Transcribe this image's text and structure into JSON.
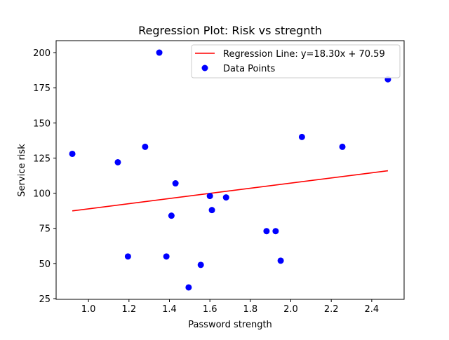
{
  "chart_data": {
    "type": "scatter",
    "title": "Regression Plot: Risk vs stregnth",
    "xlabel": "Password strength",
    "ylabel": "Service risk",
    "xlim": [
      0.84,
      2.56
    ],
    "ylim": [
      24.5,
      208.5
    ],
    "xticks": [
      "1.0",
      "1.2",
      "1.4",
      "1.6",
      "1.8",
      "2.0",
      "2.2",
      "2.4"
    ],
    "xtick_values": [
      1.0,
      1.2,
      1.4,
      1.6,
      1.8,
      2.0,
      2.2,
      2.4
    ],
    "yticks": [
      "25",
      "50",
      "75",
      "100",
      "125",
      "150",
      "175",
      "200"
    ],
    "ytick_values": [
      25,
      50,
      75,
      100,
      125,
      150,
      175,
      200
    ],
    "grid": false,
    "legend_position": "top-right",
    "legend": [
      "Regression Line: y=18.30x + 70.59",
      "Data Points"
    ],
    "regression": {
      "label": "Regression Line: y=18.30x + 70.59",
      "slope": 18.3,
      "intercept": 70.59,
      "x_range": [
        0.92,
        2.48
      ],
      "color": "#ff0000"
    },
    "series": [
      {
        "name": "Data Points",
        "color": "#0000ff",
        "points": [
          {
            "x": 0.92,
            "y": 128
          },
          {
            "x": 1.145,
            "y": 122
          },
          {
            "x": 1.195,
            "y": 55
          },
          {
            "x": 1.28,
            "y": 133
          },
          {
            "x": 1.35,
            "y": 200
          },
          {
            "x": 1.385,
            "y": 55
          },
          {
            "x": 1.41,
            "y": 84
          },
          {
            "x": 1.43,
            "y": 107
          },
          {
            "x": 1.495,
            "y": 33
          },
          {
            "x": 1.555,
            "y": 49
          },
          {
            "x": 1.6,
            "y": 98
          },
          {
            "x": 1.61,
            "y": 88
          },
          {
            "x": 1.68,
            "y": 97
          },
          {
            "x": 1.88,
            "y": 73
          },
          {
            "x": 1.925,
            "y": 73
          },
          {
            "x": 1.95,
            "y": 52
          },
          {
            "x": 2.055,
            "y": 140
          },
          {
            "x": 2.255,
            "y": 133
          },
          {
            "x": 2.48,
            "y": 181
          }
        ]
      }
    ]
  }
}
